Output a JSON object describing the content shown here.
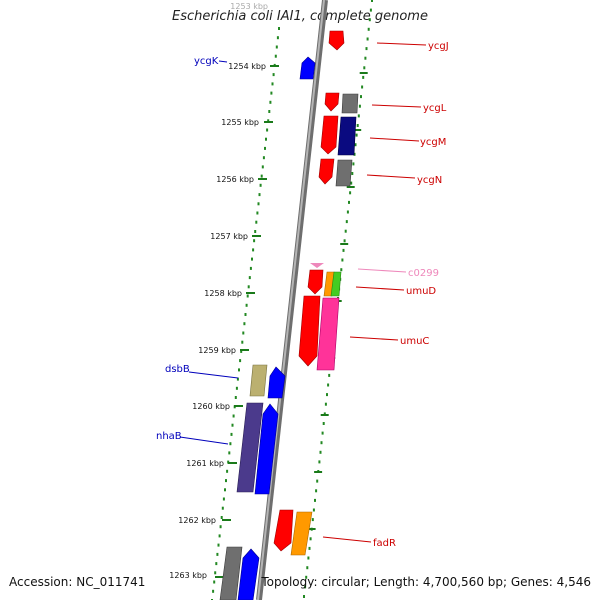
{
  "title": "Escherichia coli IAI1, complete genome",
  "footer": {
    "accession": "Accession: NC_011741",
    "summary": "Topology: circular; Length: 4,700,560 bp; Genes: 4,546"
  },
  "ruler": {
    "top_label": "1253 kbp",
    "labels": [
      "1254 kbp",
      "1255 kbp",
      "1256 kbp",
      "1257 kbp",
      "1258 kbp",
      "1259 kbp",
      "1260 kbp",
      "1261 kbp",
      "1262 kbp",
      "1263 kbp"
    ]
  },
  "genes_right": [
    {
      "name": "ycgJ",
      "color": "#cc0000"
    },
    {
      "name": "ycgL",
      "color": "#cc0000"
    },
    {
      "name": "ycgM",
      "color": "#cc0000"
    },
    {
      "name": "ycgN",
      "color": "#cc0000"
    },
    {
      "name": "c0299",
      "color": "#ee88bb"
    },
    {
      "name": "umuD",
      "color": "#cc0000"
    },
    {
      "name": "umuC",
      "color": "#cc0000"
    },
    {
      "name": "fadR",
      "color": "#cc0000"
    }
  ],
  "genes_left": [
    {
      "name": "ycgK",
      "color": "#0000bb"
    },
    {
      "name": "dsbB",
      "color": "#0000bb"
    },
    {
      "name": "nhaB",
      "color": "#0000bb"
    }
  ],
  "colors": {
    "backbone": "#909090",
    "dots": "#228822",
    "forward": "#ff0000",
    "reverse": "#0000ff"
  }
}
